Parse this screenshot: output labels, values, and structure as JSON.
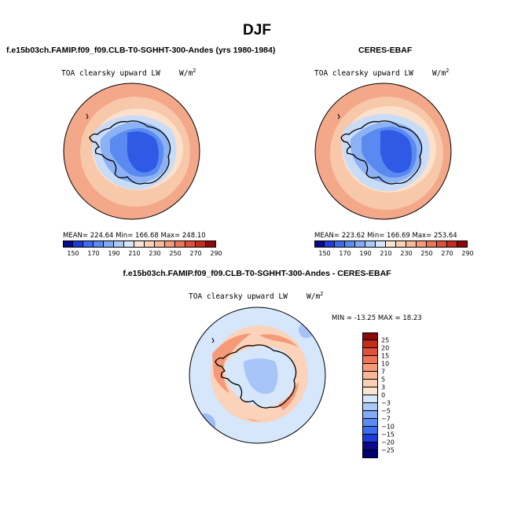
{
  "title": "DJF",
  "panels": {
    "model": {
      "title": "f.e15b03ch.FAMIP.f09_f09.CLB-T0-SGHHT-300-Andes (yrs 1980-1984)",
      "variable": "TOA clearsky upward LW",
      "units": "W/m",
      "units_power": "2",
      "stats": "MEAN= 224.64   Min= 166.68   Max= 248.10"
    },
    "obs": {
      "title": "CERES-EBAF",
      "variable": "TOA clearsky upward LW",
      "units": "W/m",
      "units_power": "2",
      "stats": "MEAN= 223.62   Min= 166.69   Max= 253.64"
    },
    "diff": {
      "title": "f.e15b03ch.FAMIP.f09_f09.CLB-T0-SGHHT-300-Andes - CERES-EBAF",
      "variable": "TOA clearsky upward LW",
      "units": "W/m",
      "units_power": "2",
      "stats": "MIN = -13.25  MAX =  18.23"
    }
  },
  "colorbar_abs": {
    "tick_labels": [
      "150",
      "170",
      "190",
      "210",
      "230",
      "250",
      "270",
      "290"
    ],
    "colors": [
      "#0a0a8c",
      "#1e3cdc",
      "#3d6cf0",
      "#5b8cf3",
      "#82aaf5",
      "#aac8f8",
      "#d6e6fb",
      "#fbe4d2",
      "#fcd0b4",
      "#fab898",
      "#f59a78",
      "#ee7656",
      "#e0503a",
      "#c42c1c",
      "#8e0a08"
    ]
  },
  "colorbar_diff": {
    "tick_labels": [
      "25",
      "20",
      "15",
      "10",
      "7",
      "5",
      "3",
      "0",
      "−3",
      "−5",
      "−7",
      "−10",
      "−15",
      "−20",
      "−25"
    ],
    "colors": [
      "#8e0a08",
      "#c42c1c",
      "#e0503a",
      "#ee7656",
      "#f59a78",
      "#fab898",
      "#fcd0b4",
      "#fbe4d2",
      "#d6e6fb",
      "#aac8f8",
      "#82aaf5",
      "#5b8cf3",
      "#3d6cf0",
      "#1e3cdc",
      "#0a0a8c",
      "#000070"
    ]
  },
  "map_colors": {
    "ocean_outer": "#f4a88a",
    "ocean_mid": "#f8c8aa",
    "ocean_inner": "#fbe0cc",
    "ice_edge": "#c8dcf8",
    "ice_light": "#8cb2f4",
    "ice_mid": "#5a8af0",
    "ice_deep": "#2e5ae6",
    "diff_bg": "#d6e6fb",
    "diff_pos": "#f59a78",
    "diff_pos_light": "#fbd2ba",
    "diff_neg": "#82aaf5"
  }
}
